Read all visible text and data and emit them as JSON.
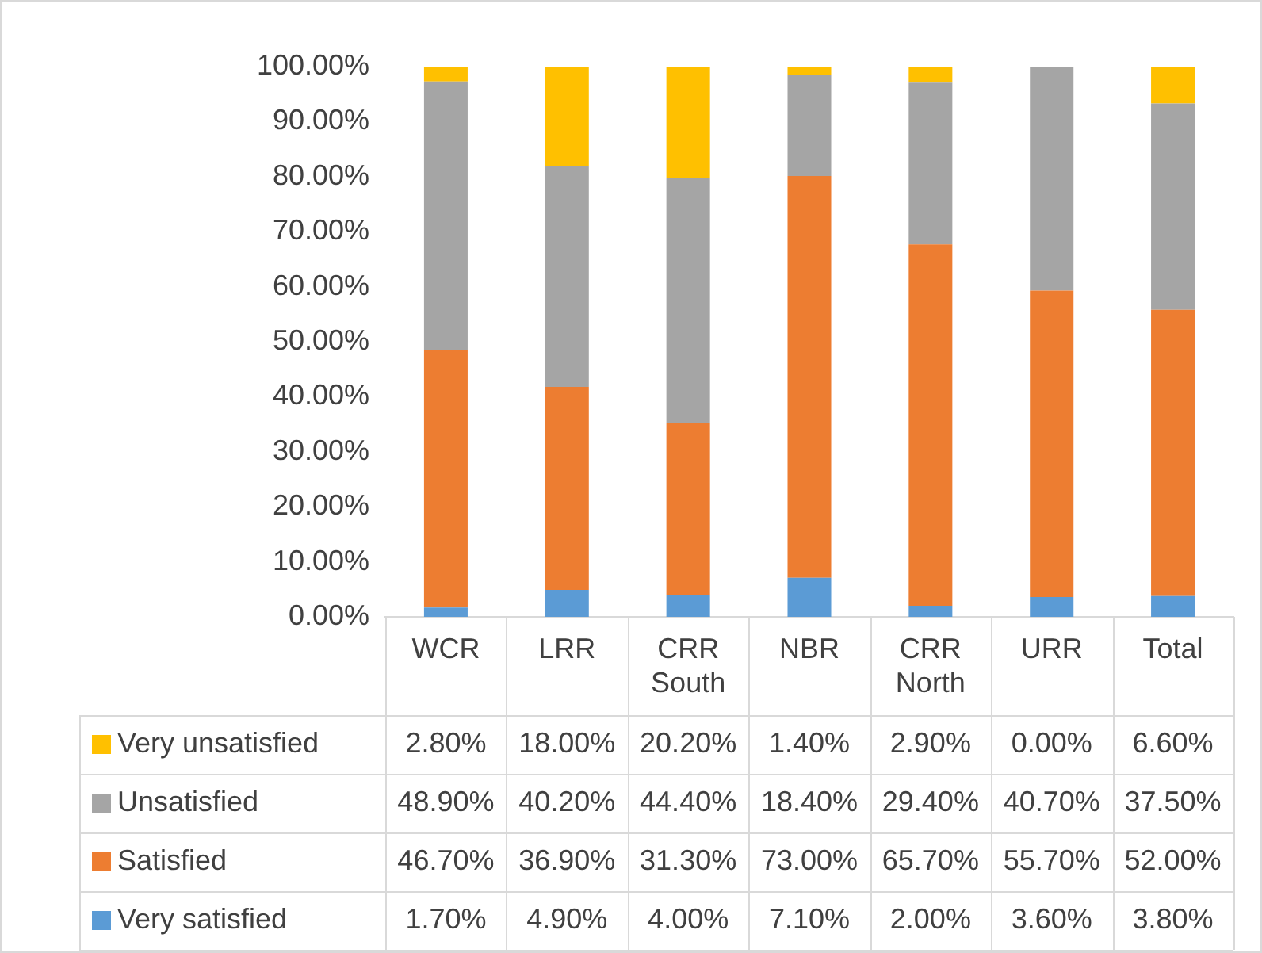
{
  "chart_data": {
    "type": "bar",
    "stacked": true,
    "categories": [
      "WCR",
      "LRR",
      "CRR South",
      "NBR",
      "CRR North",
      "URR",
      "Total"
    ],
    "series": [
      {
        "name": "Very satisfied",
        "color": "#5b9bd5",
        "values": [
          1.7,
          4.9,
          4.0,
          7.1,
          2.0,
          3.6,
          3.8
        ],
        "value_labels": [
          "1.70%",
          "4.90%",
          "4.00%",
          "7.10%",
          "2.00%",
          "3.60%",
          "3.80%"
        ]
      },
      {
        "name": "Satisfied",
        "color": "#ed7d31",
        "values": [
          46.7,
          36.9,
          31.3,
          73.0,
          65.7,
          55.7,
          52.0
        ],
        "value_labels": [
          "46.70%",
          "36.90%",
          "31.30%",
          "73.00%",
          "65.70%",
          "55.70%",
          "52.00%"
        ]
      },
      {
        "name": "Unsatisfied",
        "color": "#a5a5a5",
        "values": [
          48.9,
          40.2,
          44.4,
          18.4,
          29.4,
          40.7,
          37.5
        ],
        "value_labels": [
          "48.90%",
          "40.20%",
          "44.40%",
          "18.40%",
          "29.40%",
          "40.70%",
          "37.50%"
        ]
      },
      {
        "name": "Very unsatisfied",
        "color": "#ffc000",
        "values": [
          2.8,
          18.0,
          20.2,
          1.4,
          2.9,
          0.0,
          6.6
        ],
        "value_labels": [
          "2.80%",
          "18.00%",
          "20.20%",
          "1.40%",
          "2.90%",
          "0.00%",
          "6.60%"
        ]
      }
    ],
    "ylim": [
      0,
      100
    ],
    "yticks": [
      {
        "value": 0,
        "label": "0.00%"
      },
      {
        "value": 10,
        "label": "10.00%"
      },
      {
        "value": 20,
        "label": "20.00%"
      },
      {
        "value": 30,
        "label": "30.00%"
      },
      {
        "value": 40,
        "label": "40.00%"
      },
      {
        "value": 50,
        "label": "50.00%"
      },
      {
        "value": 60,
        "label": "60.00%"
      },
      {
        "value": 70,
        "label": "70.00%"
      },
      {
        "value": 80,
        "label": "80.00%"
      },
      {
        "value": 90,
        "label": "90.00%"
      },
      {
        "value": 100,
        "label": "100.00%"
      }
    ],
    "grid": false,
    "legend": "bottom"
  }
}
